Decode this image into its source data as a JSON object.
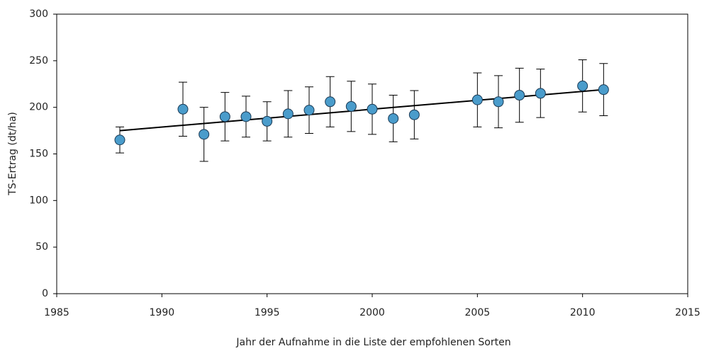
{
  "chart_data": {
    "type": "scatter",
    "x_label": "Jahr der Aufnahme in die Liste der empfohlenen Sorten",
    "y_label": "TS-Ertrag  (dt/ha)",
    "x": [
      1988,
      1991,
      1992,
      1993,
      1994,
      1995,
      1996,
      1997,
      1998,
      1999,
      2000,
      2001,
      2002,
      2005,
      2006,
      2007,
      2008,
      2010,
      2011
    ],
    "values": [
      165,
      198,
      171,
      190,
      190,
      185,
      193,
      197,
      206,
      201,
      198,
      188,
      192,
      208,
      206,
      213,
      215,
      223,
      219
    ],
    "errors": [
      14,
      29,
      29,
      26,
      22,
      21,
      25,
      25,
      27,
      27,
      27,
      25,
      26,
      29,
      28,
      29,
      26,
      28,
      28
    ],
    "color": "#4a9ccb",
    "trend": {
      "x": [
        1988,
        2011
      ],
      "values": [
        175,
        219
      ],
      "color": "#000000"
    },
    "xlim": [
      1985,
      2015
    ],
    "xticks": [
      1985,
      1990,
      1995,
      2000,
      2005,
      2010,
      2015
    ],
    "ylim": [
      0,
      300
    ],
    "yticks": [
      0,
      50,
      100,
      150,
      200,
      250,
      300
    ]
  }
}
